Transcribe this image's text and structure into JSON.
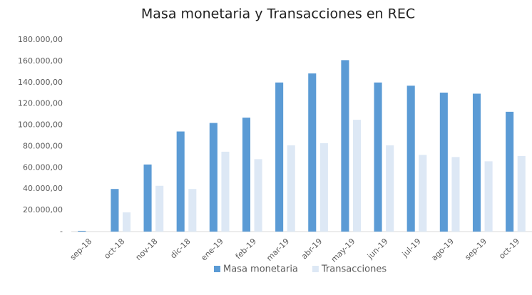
{
  "chart_data": {
    "type": "bar",
    "title": "Masa monetaria y Transacciones en REC",
    "categories": [
      "sep-18",
      "oct-18",
      "nov-18",
      "dic-18",
      "ene-19",
      "feb-19",
      "mar-19",
      "abr-19",
      "may-19",
      "jun-19",
      "jul-19",
      "ago-19",
      "sep-19",
      "oct-19"
    ],
    "series": [
      {
        "name": "Masa monetaria",
        "color": "#5b9bd5",
        "values": [
          700,
          40000,
          63000,
          94000,
          102000,
          107000,
          140000,
          148500,
          161000,
          140000,
          137000,
          130500,
          129500,
          112500
        ]
      },
      {
        "name": "Transacciones",
        "color": "#dde8f5",
        "values": [
          0,
          18000,
          43000,
          40000,
          75000,
          68000,
          81000,
          83000,
          105000,
          81000,
          72000,
          70000,
          66000,
          71000
        ]
      }
    ],
    "ylim": [
      0,
      180000
    ],
    "yticks": [
      {
        "value": 0,
        "label": "-"
      },
      {
        "value": 20000,
        "label": "20.000,00"
      },
      {
        "value": 40000,
        "label": "40.000,00"
      },
      {
        "value": 60000,
        "label": "60.000,00"
      },
      {
        "value": 80000,
        "label": "80.000,00"
      },
      {
        "value": 100000,
        "label": "100.000,00"
      },
      {
        "value": 120000,
        "label": "120.000,00"
      },
      {
        "value": 140000,
        "label": "140.000,00"
      },
      {
        "value": 160000,
        "label": "160.000,00"
      },
      {
        "value": 180000,
        "label": "180.000,00"
      }
    ],
    "grid": false,
    "legend": "bottom"
  }
}
